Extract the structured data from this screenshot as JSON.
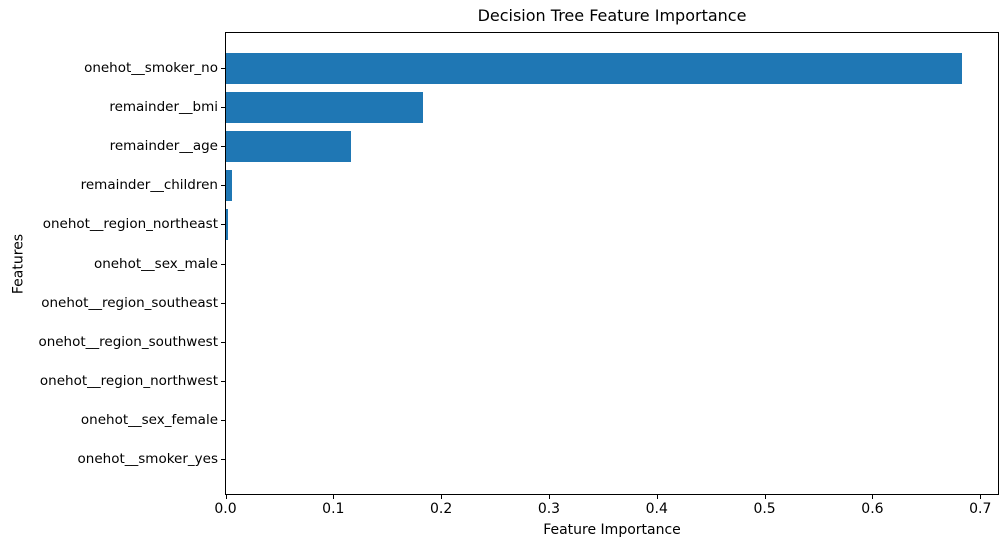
{
  "chart_data": {
    "type": "bar",
    "orientation": "horizontal",
    "title": "Decision Tree Feature Importance",
    "xlabel": "Feature Importance",
    "ylabel": "Features",
    "categories": [
      "onehot__smoker_no",
      "remainder__bmi",
      "remainder__age",
      "remainder__children",
      "onehot__region_northeast",
      "onehot__sex_male",
      "onehot__region_southeast",
      "onehot__region_southwest",
      "onehot__region_northwest",
      "onehot__sex_female",
      "onehot__smoker_yes"
    ],
    "values": [
      0.683,
      0.183,
      0.116,
      0.006,
      0.002,
      0,
      0,
      0,
      0,
      0,
      0
    ],
    "x_ticks": [
      0.0,
      0.1,
      0.2,
      0.3,
      0.4,
      0.5,
      0.6,
      0.7
    ],
    "x_tick_labels": [
      "0.0",
      "0.1",
      "0.2",
      "0.3",
      "0.4",
      "0.5",
      "0.6",
      "0.7"
    ],
    "xlim": [
      0,
      0.716
    ],
    "ylim_categories": 11,
    "grid": false,
    "legend": "none",
    "bar_color": "#1f77b4",
    "background_color": "#ffffff",
    "spine_color": "#000000",
    "text_color": "#000000"
  }
}
